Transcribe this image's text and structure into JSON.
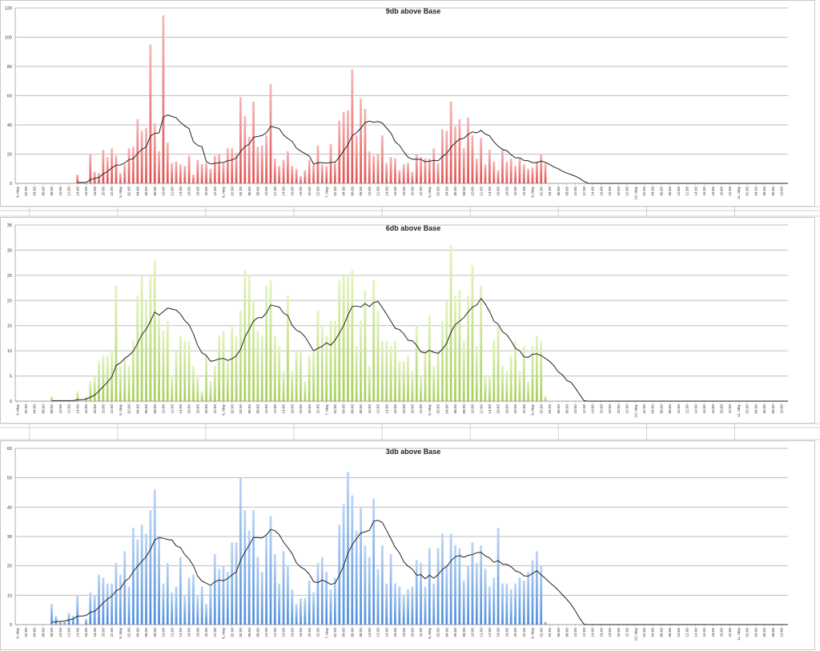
{
  "x_tick_labels": [
    "4, May",
    "02:00",
    "04:00",
    "06:00",
    "08:00",
    "10:00",
    "12:00",
    "14:00",
    "16:00",
    "18:00",
    "20:00",
    "22:00",
    "5, May",
    "02:00",
    "04:00",
    "06:00",
    "08:00",
    "10:00",
    "12:00",
    "14:00",
    "16:00",
    "18:00",
    "20:00",
    "22:00",
    "6, May",
    "02:00",
    "04:00",
    "06:00",
    "08:00",
    "10:00",
    "12:00",
    "14:00",
    "16:00",
    "18:00",
    "20:00",
    "22:00",
    "7, May",
    "02:00",
    "04:00",
    "06:00",
    "08:00",
    "10:00",
    "12:00",
    "14:00",
    "16:00",
    "18:00",
    "20:00",
    "22:00",
    "8, May",
    "02:00",
    "04:00",
    "06:00",
    "08:00",
    "10:00",
    "12:00",
    "14:00",
    "16:00",
    "18:00",
    "20:00",
    "22:00",
    "9, May",
    "02:00",
    "04:00",
    "06:00",
    "08:00",
    "10:00",
    "12:00",
    "14:00",
    "16:00",
    "18:00",
    "20:00",
    "22:00",
    "10, May",
    "02:00",
    "04:00",
    "06:00",
    "08:00",
    "10:00",
    "12:00",
    "14:00",
    "16:00",
    "18:00",
    "20:00",
    "22:00",
    "11, May",
    "02:00",
    "04:00",
    "06:00",
    "08:00",
    "10:00"
  ],
  "chart_data": [
    {
      "type": "bar",
      "title": "9db above Base",
      "x_unit": "hourly, starting 4 May 00:00",
      "ylim": [
        0,
        120
      ],
      "y_ticks": [
        "0",
        "20",
        "40",
        "60",
        "80",
        "100",
        "120"
      ],
      "grid": true,
      "bar_color_light": "#f7b8b8",
      "bar_color_dark": "#e0504f",
      "trend": "moving average (period 10)",
      "values": [
        0,
        0,
        0,
        0,
        0,
        0,
        0,
        0,
        0,
        0,
        0,
        0,
        0,
        0,
        6,
        0,
        0,
        20,
        8,
        7,
        23,
        18,
        24,
        19,
        7,
        13,
        24,
        25,
        44,
        36,
        38,
        95,
        41,
        22,
        115,
        28,
        14,
        15,
        13,
        12,
        19,
        6,
        16,
        13,
        14,
        10,
        19,
        20,
        14,
        24,
        24,
        21,
        59,
        46,
        32,
        56,
        25,
        26,
        33,
        68,
        17,
        12,
        16,
        22,
        12,
        10,
        5,
        9,
        16,
        13,
        26,
        13,
        12,
        27,
        15,
        43,
        49,
        50,
        78,
        33,
        58,
        51,
        22,
        19,
        20,
        33,
        14,
        18,
        17,
        9,
        13,
        14,
        8,
        20,
        18,
        17,
        17,
        24,
        14,
        37,
        36,
        56,
        39,
        44,
        24,
        45,
        33,
        17,
        31,
        13,
        23,
        15,
        9,
        23,
        15,
        17,
        12,
        17,
        13,
        10,
        11,
        15,
        20,
        14
      ]
    },
    {
      "type": "bar",
      "title": "6db above Base",
      "x_unit": "hourly, starting 4 May 00:00",
      "ylim": [
        0,
        35
      ],
      "y_ticks": [
        "0",
        "5",
        "10",
        "15",
        "20",
        "25",
        "30",
        "35"
      ],
      "grid": true,
      "bar_color_light": "#e4f4c0",
      "bar_color_dark": "#a6d05a",
      "trend": "moving average (period 10)",
      "values": [
        0,
        0,
        0,
        0,
        0,
        0,
        0,
        0,
        1,
        0,
        0,
        0,
        0,
        0,
        2,
        0,
        1,
        4,
        5,
        8,
        9,
        9,
        10,
        23,
        7,
        9,
        7,
        12,
        21,
        25,
        20,
        25,
        28,
        17,
        14,
        16,
        5,
        10,
        13,
        12,
        12,
        7,
        5,
        2,
        9,
        4,
        7,
        13,
        14,
        8,
        15,
        13,
        18,
        26,
        25,
        20,
        14,
        13,
        23,
        24,
        13,
        11,
        6,
        21,
        6,
        10,
        10,
        4,
        9,
        10,
        18,
        15,
        13,
        16,
        16,
        24,
        25,
        25,
        26,
        11,
        16,
        22,
        7,
        24,
        18,
        12,
        12,
        11,
        12,
        8,
        8,
        9,
        6,
        15,
        5,
        10,
        17,
        7,
        10,
        16,
        20,
        31,
        21,
        22,
        12,
        21,
        27,
        11,
        23,
        5,
        5,
        12,
        15,
        7,
        6,
        9,
        12,
        6,
        11,
        4,
        11,
        13,
        12,
        1
      ]
    },
    {
      "type": "bar",
      "title": "3db above Base",
      "x_unit": "hourly, starting 4 May 00:00",
      "ylim": [
        0,
        60
      ],
      "y_ticks": [
        "0",
        "10",
        "20",
        "30",
        "40",
        "50",
        "60"
      ],
      "grid": true,
      "bar_color_light": "#bcd6f5",
      "bar_color_dark": "#4f8ede",
      "trend": "moving average (period 10)",
      "values": [
        0,
        0,
        0,
        0,
        0,
        0,
        0,
        0,
        7,
        3,
        1,
        1,
        4,
        3,
        10,
        0,
        2,
        11,
        10,
        17,
        16,
        14,
        14,
        21,
        17,
        25,
        13,
        33,
        29,
        34,
        31,
        39,
        46,
        30,
        14,
        21,
        11,
        13,
        23,
        10,
        16,
        17,
        10,
        13,
        7,
        13,
        24,
        19,
        20,
        18,
        28,
        28,
        50,
        39,
        32,
        39,
        23,
        18,
        30,
        37,
        24,
        14,
        25,
        20,
        12,
        7,
        9,
        9,
        15,
        11,
        21,
        23,
        18,
        12,
        16,
        34,
        41,
        52,
        44,
        32,
        40,
        27,
        23,
        43,
        19,
        27,
        14,
        24,
        14,
        13,
        10,
        12,
        13,
        22,
        21,
        13,
        26,
        14,
        26,
        31,
        20,
        31,
        27,
        26,
        15,
        20,
        28,
        21,
        27,
        19,
        13,
        16,
        33,
        14,
        14,
        12,
        14,
        16,
        15,
        18,
        22,
        25,
        20,
        1
      ]
    }
  ]
}
